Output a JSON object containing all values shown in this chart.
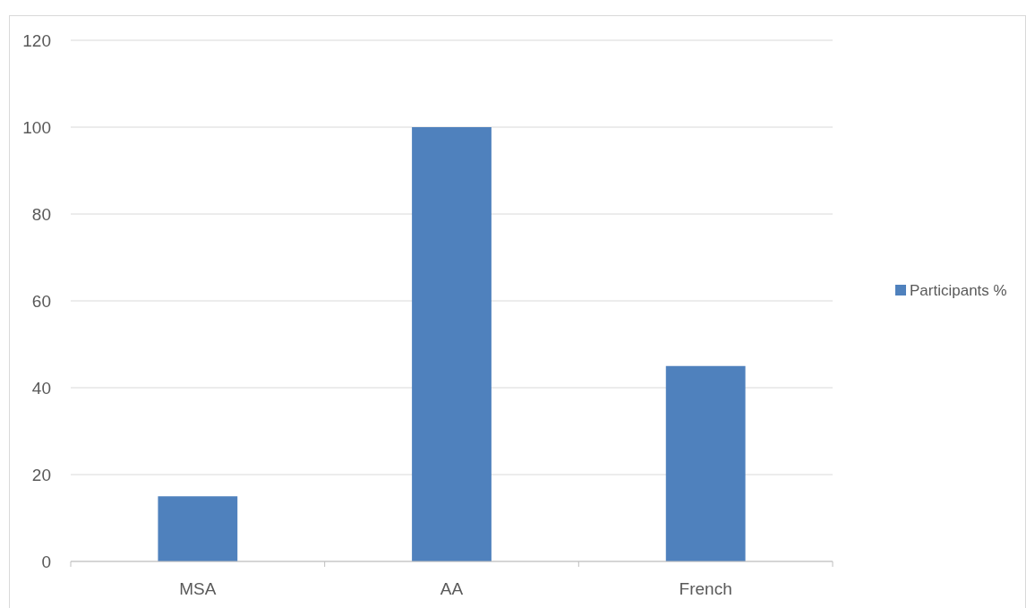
{
  "chart_data": {
    "type": "bar",
    "categories": [
      "MSA",
      "AA",
      "French"
    ],
    "series": [
      {
        "name": "Participants %",
        "color": "#4f81bd",
        "values": [
          15,
          100,
          45
        ]
      }
    ],
    "ylim": [
      0,
      120
    ],
    "yticks": [
      0,
      20,
      40,
      60,
      80,
      100,
      120
    ],
    "grid": "y",
    "legend": "right"
  }
}
